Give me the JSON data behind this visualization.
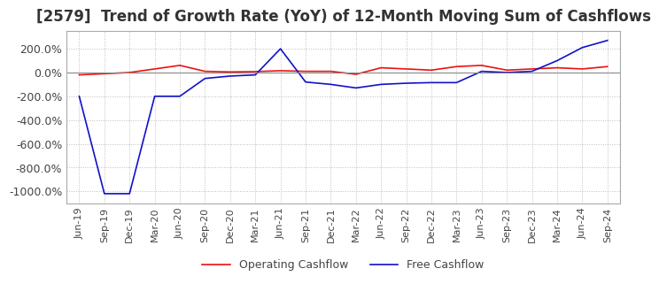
{
  "title": "[2579]  Trend of Growth Rate (YoY) of 12-Month Moving Sum of Cashflows",
  "title_fontsize": 12,
  "background_color": "#ffffff",
  "grid_color": "#bbbbbb",
  "ylim": [
    -1100,
    350
  ],
  "yticks": [
    200,
    0,
    -200,
    -400,
    -600,
    -800,
    -1000
  ],
  "operating_color": "#ee1111",
  "free_color": "#1111cc",
  "legend_labels": [
    "Operating Cashflow",
    "Free Cashflow"
  ],
  "x_labels": [
    "Jun-19",
    "Sep-19",
    "Dec-19",
    "Mar-20",
    "Jun-20",
    "Sep-20",
    "Dec-20",
    "Mar-21",
    "Jun-21",
    "Sep-21",
    "Dec-21",
    "Mar-22",
    "Jun-22",
    "Sep-22",
    "Dec-22",
    "Mar-23",
    "Jun-23",
    "Sep-23",
    "Dec-23",
    "Mar-24",
    "Jun-24",
    "Sep-24"
  ],
  "operating_cashflow": [
    -20,
    -10,
    0,
    30,
    60,
    10,
    5,
    8,
    15,
    10,
    10,
    -15,
    40,
    30,
    20,
    50,
    60,
    20,
    30,
    40,
    30,
    50
  ],
  "free_cashflow": [
    -200,
    -1020,
    -1020,
    -200,
    -200,
    -50,
    -30,
    -20,
    200,
    -80,
    -100,
    -130,
    -100,
    -90,
    -85,
    -85,
    10,
    0,
    10,
    100,
    210,
    270
  ]
}
